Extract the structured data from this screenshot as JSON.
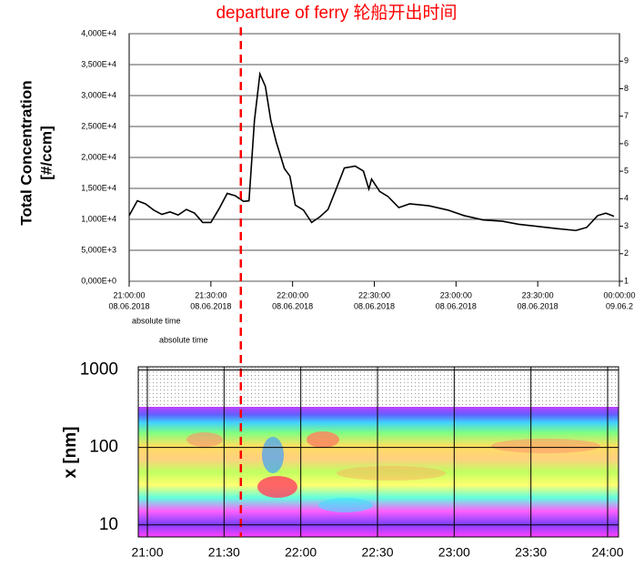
{
  "chart_data": [
    {
      "type": "line",
      "annotation": {
        "text": "departure of ferry 轮船开出时间",
        "x": 41,
        "color": "#ff0000"
      },
      "y_label": [
        "Total Concentration",
        "[#/ccm]"
      ],
      "x_labels": [
        "absolute time",
        "absolute time"
      ],
      "xlim": [
        0,
        180
      ],
      "xticks": [
        {
          "value": 0,
          "label": "21:00:00"
        },
        {
          "value": 30,
          "label": "21:30:00"
        },
        {
          "value": 60,
          "label": "22:00:00"
        },
        {
          "value": 90,
          "label": "22:30:00"
        },
        {
          "value": 120,
          "label": "23:00:00"
        },
        {
          "value": 150,
          "label": "23:30:00"
        },
        {
          "value": 180,
          "label": "00:00:00"
        }
      ],
      "xtick_dates": [
        "08.06.2018",
        "08.06.2018",
        "08.06.2018",
        "08.06.2018",
        "08.06.2018",
        "08.06.2018",
        "09.06.2"
      ],
      "ylim": [
        0,
        40000
      ],
      "yticks": [
        {
          "value": 0,
          "label": "0,000E+0"
        },
        {
          "value": 5000,
          "label": "5,000E+3"
        },
        {
          "value": 10000,
          "label": "1,000E+4"
        },
        {
          "value": 15000,
          "label": "1,500E+4"
        },
        {
          "value": 20000,
          "label": "2,000E+4"
        },
        {
          "value": 25000,
          "label": "2,500E+4"
        },
        {
          "value": 30000,
          "label": "3,000E+4"
        },
        {
          "value": 35000,
          "label": "3,500E+4"
        },
        {
          "value": 40000,
          "label": "4,000E+4"
        }
      ],
      "y2lim": [
        1,
        10
      ],
      "y2ticks": [
        1,
        2,
        3,
        4,
        5,
        6,
        7,
        8,
        9
      ],
      "grid": true,
      "series": [
        {
          "color": "#000000",
          "x": [
            0,
            3,
            6,
            9,
            12,
            15,
            18,
            21,
            24,
            27,
            30,
            33,
            36,
            39,
            42,
            44,
            46,
            48,
            50,
            52,
            54,
            57,
            59,
            61,
            64,
            67,
            70,
            73,
            76,
            79,
            83,
            86,
            88,
            89,
            92,
            95,
            99,
            103,
            110,
            117,
            123,
            130,
            137,
            143,
            149,
            157,
            164,
            168,
            172,
            175,
            178
          ],
          "values": [
            10600,
            13000,
            12500,
            11500,
            10800,
            11200,
            10700,
            11600,
            11000,
            9500,
            9500,
            11700,
            14200,
            13800,
            12900,
            13000,
            26000,
            33500,
            31500,
            26000,
            22500,
            18200,
            17000,
            12300,
            11500,
            9500,
            10400,
            11600,
            14900,
            18300,
            18600,
            17800,
            14900,
            16500,
            14500,
            13700,
            11900,
            12500,
            12200,
            11500,
            10600,
            9900,
            9700,
            9200,
            8900,
            8500,
            8200,
            8700,
            10600,
            11000,
            10500
          ]
        }
      ]
    },
    {
      "type": "heatmap",
      "y_label": "x [nm]",
      "xlim": [
        0,
        180
      ],
      "xticks": [
        {
          "value": 0,
          "label": "21:00"
        },
        {
          "value": 30,
          "label": "21:30"
        },
        {
          "value": 60,
          "label": "22:00"
        },
        {
          "value": 90,
          "label": "22:30"
        },
        {
          "value": 120,
          "label": "23:00"
        },
        {
          "value": 150,
          "label": "23:30"
        },
        {
          "value": 180,
          "label": "24:00"
        }
      ],
      "ylim": [
        7,
        1100
      ],
      "yticks": [
        10,
        100,
        1000
      ],
      "log_y": true
    }
  ]
}
